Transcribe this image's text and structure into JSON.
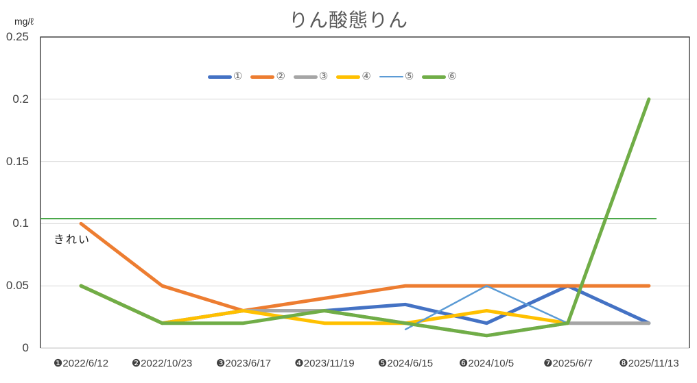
{
  "chart_data": {
    "type": "line",
    "title": "りん酸態りん",
    "ylabel": "mg/ℓ",
    "xlabel": "",
    "ylim": [
      0,
      0.25
    ],
    "y_ticks": [
      "0.25",
      "0.2",
      "0.15",
      "0.1",
      "0.05",
      "0"
    ],
    "grid": true,
    "legend_position": "top-center",
    "categories": [
      "❶2022/6/12",
      "❷2022/10/23",
      "❸2023/6/17",
      "❹2023/11/19",
      "❺2024/6/15",
      "❻2024/10/5",
      "❼2025/6/7",
      "❽2025/11/13"
    ],
    "series": [
      {
        "name": "①",
        "color": "#4472C4",
        "line_width": 5,
        "values": [
          0.05,
          0.02,
          0.03,
          0.03,
          0.035,
          0.02,
          0.05,
          0.02
        ]
      },
      {
        "name": "②",
        "color": "#ED7D31",
        "line_width": 5,
        "values": [
          0.1,
          0.05,
          0.03,
          0.04,
          0.05,
          0.05,
          0.05,
          0.05
        ]
      },
      {
        "name": "③",
        "color": "#A5A5A5",
        "line_width": 5,
        "values": [
          0.05,
          0.02,
          0.03,
          0.03,
          0.02,
          0.01,
          0.02,
          0.02
        ]
      },
      {
        "name": "④",
        "color": "#FFC000",
        "line_width": 5,
        "values": [
          0.05,
          0.02,
          0.03,
          0.02,
          0.02,
          0.03,
          0.02,
          null
        ]
      },
      {
        "name": "⑤",
        "color": "#5B9BD5",
        "line_width": 2.5,
        "values": [
          null,
          null,
          null,
          null,
          0.015,
          0.05,
          0.02,
          null
        ]
      },
      {
        "name": "⑥",
        "color": "#70AD47",
        "line_width": 5,
        "values": [
          0.05,
          0.02,
          0.02,
          0.03,
          0.02,
          0.01,
          0.02,
          0.2
        ]
      }
    ],
    "reference_line": {
      "label": "きれい",
      "value": 0.104,
      "color": "#3BA13B",
      "line_width": 2
    }
  }
}
